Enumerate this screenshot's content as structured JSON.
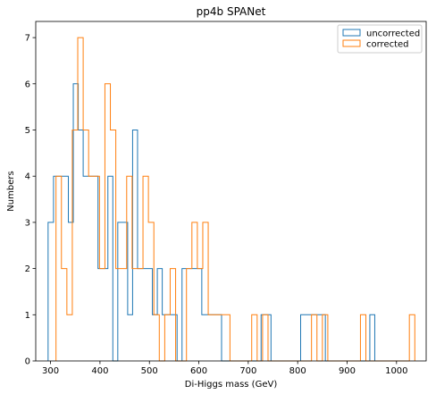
{
  "chart_data": {
    "type": "histogram-step",
    "title": "pp4b SPANet",
    "xlabel": "Di-Higgs mass (GeV)",
    "ylabel": "Numbers",
    "xlim": [
      270,
      1060
    ],
    "ylim": [
      0,
      7.35
    ],
    "x_ticks": [
      300,
      400,
      500,
      600,
      700,
      800,
      900,
      1000
    ],
    "y_ticks": [
      0,
      1,
      2,
      3,
      4,
      5,
      6,
      7
    ],
    "legend_position": "upper right",
    "series": [
      {
        "name": "uncorrected",
        "color": "#1f77b4",
        "edges": [
          295,
          306,
          316,
          326,
          336,
          346,
          356,
          366,
          376,
          386,
          396,
          406,
          416,
          426,
          436,
          446,
          456,
          466,
          476,
          486,
          496,
          506,
          516,
          526,
          536,
          546,
          556,
          566,
          576,
          586,
          596,
          606,
          616,
          626,
          636,
          646,
          656,
          666,
          676,
          686,
          696,
          706,
          716,
          726,
          736,
          746,
          756,
          766,
          776,
          786,
          796,
          806,
          816,
          826,
          836,
          846,
          856,
          866,
          876,
          886,
          896,
          906,
          916,
          926,
          936,
          946,
          956,
          966
        ],
        "counts": [
          3,
          4,
          4,
          4,
          3,
          6,
          5,
          4,
          4,
          4,
          2,
          2,
          4,
          0,
          3,
          3,
          1,
          5,
          2,
          2,
          2,
          1,
          2,
          1,
          1,
          1,
          0,
          2,
          2,
          2,
          2,
          1,
          1,
          1,
          1,
          0,
          0,
          0,
          0,
          0,
          0,
          0,
          0,
          1,
          1,
          0,
          0,
          0,
          0,
          0,
          0,
          1,
          1,
          1,
          1,
          1,
          0,
          0,
          0,
          0,
          0,
          0,
          0,
          0,
          0,
          1,
          0
        ]
      },
      {
        "name": "corrected",
        "color": "#ff7f0e",
        "edges": [
          311,
          322,
          333,
          344,
          355,
          366,
          377,
          388,
          399,
          410,
          421,
          432,
          443,
          454,
          465,
          476,
          487,
          498,
          509,
          520,
          531,
          542,
          553,
          564,
          575,
          586,
          597,
          608,
          619,
          630,
          641,
          652,
          663,
          674,
          685,
          696,
          707,
          718,
          729,
          740,
          751,
          762,
          773,
          784,
          795,
          806,
          817,
          828,
          839,
          850,
          861,
          872,
          883,
          894,
          905,
          916,
          927,
          938,
          949,
          960,
          971,
          982,
          993,
          1004,
          1015,
          1026,
          1037
        ],
        "counts": [
          4,
          2,
          1,
          5,
          7,
          5,
          4,
          4,
          2,
          6,
          5,
          2,
          2,
          4,
          2,
          2,
          4,
          3,
          1,
          0,
          1,
          2,
          0,
          0,
          2,
          3,
          2,
          3,
          1,
          1,
          1,
          1,
          0,
          0,
          0,
          0,
          1,
          0,
          1,
          0,
          0,
          0,
          0,
          0,
          0,
          0,
          0,
          1,
          0,
          1,
          0,
          0,
          0,
          0,
          0,
          0,
          1,
          0,
          0,
          0,
          0,
          0,
          0,
          0,
          0,
          1
        ]
      }
    ]
  }
}
